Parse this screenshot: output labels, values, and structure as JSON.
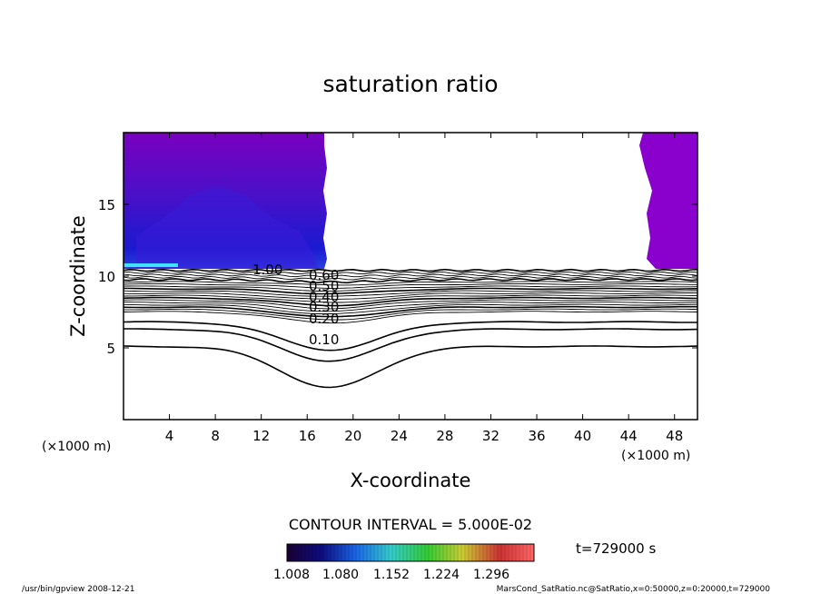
{
  "chart_data": {
    "type": "contour",
    "title": "saturation ratio",
    "xlabel": "X-coordinate",
    "ylabel": "Z-coordinate",
    "x_unit_left": "(×1000 m)",
    "x_unit_right": "(×1000 m)",
    "xlim": [
      0,
      50
    ],
    "ylim": [
      0,
      20
    ],
    "xticks": [
      4,
      8,
      12,
      16,
      20,
      24,
      28,
      32,
      36,
      40,
      44,
      48
    ],
    "yticks": [
      5,
      10,
      15
    ],
    "contour_interval_text": "CONTOUR INTERVAL = 5.000E-02",
    "time_text": "t=729000 s",
    "contour_labels": [
      "1.00",
      "0.60",
      "0.50",
      "0.40",
      "0.30",
      "0.20",
      "0.10"
    ],
    "colorbar": {
      "min": 1.008,
      "max": 1.332,
      "tick_labels": [
        "1.008",
        "1.080",
        "1.152",
        "1.224",
        "1.296"
      ],
      "colors": [
        "#1a0033",
        "#0d0d80",
        "#1a66e6",
        "#33cccc",
        "#33cc33",
        "#cccc33",
        "#cc3333",
        "#ff6666"
      ]
    },
    "shaded_region_color": "#8a00cc"
  },
  "footer": {
    "left": "/usr/bin/gpview   2008-12-21",
    "right": "MarsCond_SatRatio.nc@SatRatio,x=0:50000,z=0:20000,t=729000"
  }
}
